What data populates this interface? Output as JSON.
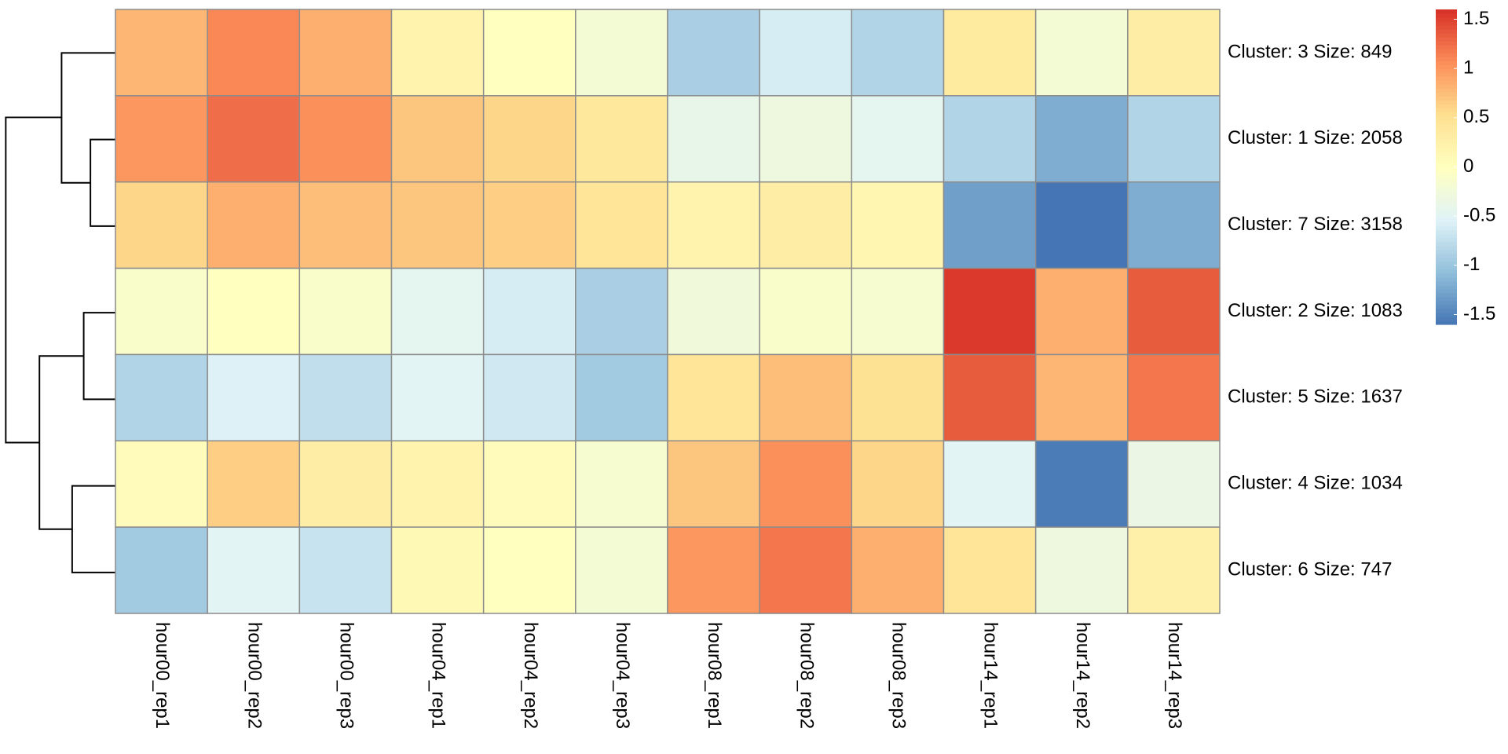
{
  "chart_data": {
    "type": "heatmap",
    "columns": [
      "hour00_rep1",
      "hour00_rep2",
      "hour00_rep3",
      "hour04_rep1",
      "hour04_rep2",
      "hour04_rep3",
      "hour08_rep1",
      "hour08_rep2",
      "hour08_rep3",
      "hour14_rep1",
      "hour14_rep2",
      "hour14_rep3"
    ],
    "rows": [
      "Cluster: 3 Size: 849",
      "Cluster: 1 Size: 2058",
      "Cluster: 7 Size: 3158",
      "Cluster: 2 Size: 1083",
      "Cluster: 5 Size: 1637",
      "Cluster: 4 Size: 1034",
      "Cluster: 6 Size: 747"
    ],
    "values": [
      [
        0.8,
        1.1,
        0.85,
        0.2,
        0.0,
        -0.2,
        -0.9,
        -0.6,
        -0.85,
        0.35,
        -0.2,
        0.3
      ],
      [
        1.0,
        1.25,
        1.05,
        0.7,
        0.6,
        0.4,
        -0.4,
        -0.3,
        -0.45,
        -0.85,
        -1.2,
        -0.85
      ],
      [
        0.6,
        0.85,
        0.75,
        0.7,
        0.65,
        0.45,
        0.2,
        0.3,
        0.15,
        -1.3,
        -1.6,
        -1.2
      ],
      [
        -0.1,
        0.0,
        -0.1,
        -0.45,
        -0.6,
        -0.9,
        -0.25,
        -0.1,
        -0.15,
        1.55,
        0.85,
        1.35
      ],
      [
        -0.85,
        -0.55,
        -0.75,
        -0.5,
        -0.65,
        -0.95,
        0.45,
        0.75,
        0.5,
        1.35,
        0.8,
        1.2
      ],
      [
        0.05,
        0.65,
        0.3,
        0.2,
        0.05,
        -0.15,
        0.7,
        1.05,
        0.6,
        -0.5,
        -1.55,
        -0.35
      ],
      [
        -0.95,
        -0.5,
        -0.7,
        0.1,
        0.0,
        -0.2,
        1.0,
        1.2,
        0.85,
        0.45,
        -0.3,
        0.25
      ]
    ],
    "colors": [
      "#4575b4",
      "#91bfdb",
      "#e0f3f8",
      "#ffffbf",
      "#fee090",
      "#fc8d59",
      "#d73027"
    ],
    "zlim": [
      -1.6,
      1.6
    ],
    "zticks": [
      -1.5,
      -1,
      -0.5,
      0,
      0.5,
      1,
      1.5
    ]
  }
}
